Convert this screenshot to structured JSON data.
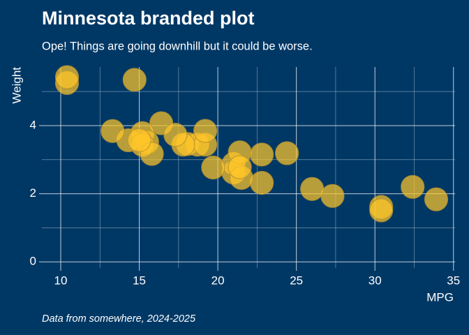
{
  "chart_data": {
    "type": "scatter",
    "title": "Minnesota branded plot",
    "subtitle": "Ope! Things are going downhill but it could be worse.",
    "x_label": "MPG",
    "y_label": "Weight",
    "caption": "Data from somewhere, 2024-2025",
    "color": "#ffc629",
    "grid": true,
    "xlim": [
      8.8,
      35.1
    ],
    "ylim": [
      -0.18,
      5.72
    ],
    "xticks": [
      10,
      15,
      20,
      25,
      30,
      35
    ],
    "yticks": [
      0,
      2,
      4
    ],
    "x": [
      21.0,
      21.0,
      22.8,
      21.4,
      18.7,
      18.1,
      14.3,
      24.4,
      22.8,
      19.2,
      17.8,
      16.4,
      17.3,
      15.2,
      10.4,
      10.4,
      14.7,
      32.4,
      30.4,
      33.9,
      21.5,
      15.5,
      15.2,
      13.3,
      19.2,
      27.3,
      26.0,
      30.4,
      15.8,
      19.7,
      15.0,
      21.4
    ],
    "values": [
      2.62,
      2.875,
      2.32,
      3.215,
      3.44,
      3.46,
      3.57,
      3.19,
      3.15,
      3.44,
      3.44,
      4.07,
      3.73,
      3.78,
      5.25,
      5.424,
      5.345,
      2.2,
      1.615,
      1.835,
      2.465,
      3.52,
      3.435,
      3.84,
      3.845,
      1.935,
      2.14,
      1.513,
      3.17,
      2.77,
      3.57,
      2.78
    ]
  }
}
